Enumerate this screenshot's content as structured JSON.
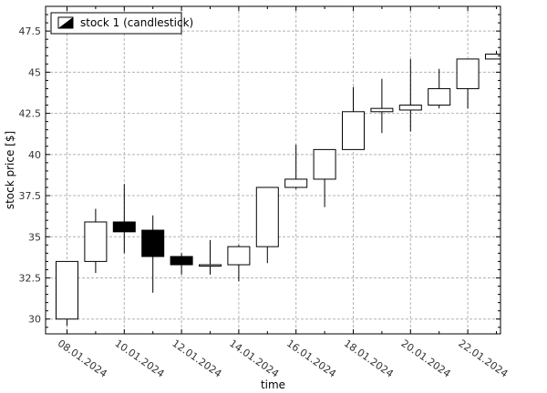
{
  "chart_data": {
    "type": "candlestick",
    "title": "",
    "xlabel": "time",
    "ylabel": "stock price [$]",
    "ylim": [
      29.1,
      49.0
    ],
    "y_ticks": [
      30,
      32.5,
      35,
      37.5,
      40,
      42.5,
      45,
      47.5
    ],
    "y_tick_labels": [
      "30",
      "32.5",
      "35",
      "37.5",
      "40",
      "42.5",
      "45",
      "47.5"
    ],
    "x_tick_labels": [
      "08.01.2024",
      "10.01.2024",
      "12.01.2024",
      "14.01.2024",
      "16.01.2024",
      "18.01.2024",
      "20.01.2024",
      "22.01.2024"
    ],
    "grid": true,
    "legend_position": "top-left",
    "series": [
      {
        "name": "stock 1 (candlestick)",
        "candles": [
          {
            "date": "08.01.2024",
            "open": 30.0,
            "close": 33.5,
            "low": 29.6,
            "high": 33.5
          },
          {
            "date": "09.01.2024",
            "open": 33.5,
            "close": 35.9,
            "low": 32.8,
            "high": 36.7
          },
          {
            "date": "10.01.2024",
            "open": 35.9,
            "close": 35.3,
            "low": 34.0,
            "high": 38.2
          },
          {
            "date": "11.01.2024",
            "open": 35.4,
            "close": 33.8,
            "low": 31.6,
            "high": 36.3
          },
          {
            "date": "12.01.2024",
            "open": 33.8,
            "close": 33.3,
            "low": 32.7,
            "high": 34.0
          },
          {
            "date": "13.01.2024",
            "open": 33.3,
            "close": 33.3,
            "low": 32.7,
            "high": 34.8
          },
          {
            "date": "14.01.2024",
            "open": 33.3,
            "close": 34.4,
            "low": 32.3,
            "high": 34.5
          },
          {
            "date": "15.01.2024",
            "open": 34.4,
            "close": 38.0,
            "low": 33.4,
            "high": 38.0
          },
          {
            "date": "16.01.2024",
            "open": 38.0,
            "close": 38.5,
            "low": 37.9,
            "high": 40.6
          },
          {
            "date": "17.01.2024",
            "open": 38.5,
            "close": 40.3,
            "low": 36.8,
            "high": 40.3
          },
          {
            "date": "18.01.2024",
            "open": 40.3,
            "close": 42.6,
            "low": 40.3,
            "high": 44.1
          },
          {
            "date": "19.01.2024",
            "open": 42.6,
            "close": 42.8,
            "low": 41.3,
            "high": 44.6
          },
          {
            "date": "20.01.2024",
            "open": 42.7,
            "close": 43.0,
            "low": 41.4,
            "high": 45.8
          },
          {
            "date": "21.01.2024",
            "open": 43.0,
            "close": 44.0,
            "low": 42.8,
            "high": 45.2
          },
          {
            "date": "22.01.2024",
            "open": 44.0,
            "close": 45.8,
            "low": 42.8,
            "high": 45.8
          },
          {
            "date": "23.01.2024",
            "open": 45.8,
            "close": 46.1,
            "low": 45.8,
            "high": 46.3
          }
        ]
      }
    ]
  },
  "colors": {
    "rising_fill": "#ffffff",
    "falling_fill": "#000000",
    "line": "#000000",
    "grid": "#b4b4b4",
    "background": "#ffffff"
  }
}
